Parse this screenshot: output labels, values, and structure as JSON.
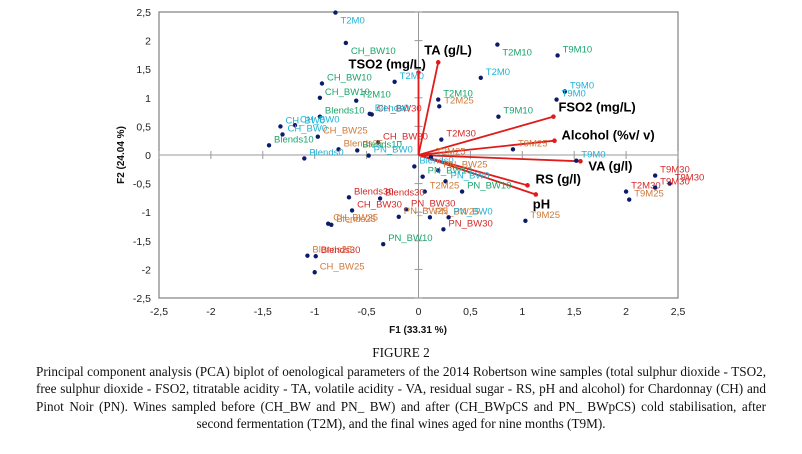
{
  "chart_data": {
    "type": "scatter",
    "subtype": "pca-biplot",
    "title": "",
    "xlabel": "F1 (33.31 %)",
    "ylabel": "F2 (24.04 %)",
    "xlim": [
      -2.5,
      2.5
    ],
    "ylim": [
      -2.5,
      2.5
    ],
    "xticks": [
      -2.5,
      -2,
      -1.5,
      -1,
      -0.5,
      0,
      0.5,
      1,
      1.5,
      2,
      2.5
    ],
    "yticks": [
      -2.5,
      -2,
      -1.5,
      -1,
      -0.5,
      0,
      0.5,
      1,
      1.5,
      2,
      2.5
    ],
    "xtick_labels": [
      "-2,5",
      "-2",
      "-1,5",
      "-1",
      "-0,5",
      "0",
      "0,5",
      "1",
      "1,5",
      "2",
      "2,5"
    ],
    "ytick_labels": [
      "-2,5",
      "-2",
      "-1,5",
      "-1",
      "-0,5",
      "0",
      "0,5",
      "1",
      "1,5",
      "2",
      "2,5"
    ],
    "grid": false,
    "legend": "none",
    "colors": {
      "cyan": "#1fb3d6",
      "green": "#1aa56b",
      "orange": "#d07a3a",
      "red": "#d42a2a",
      "point": "#0b1b6b",
      "vector": "#e01b1b"
    },
    "points": [
      {
        "label": "T2M0",
        "x": -0.8,
        "y": 2.49,
        "color": "cyan"
      },
      {
        "label": "CH_BW10",
        "x": -0.7,
        "y": 1.96,
        "color": "green"
      },
      {
        "label": "CH_BW10",
        "x": -0.93,
        "y": 1.25,
        "color": "green"
      },
      {
        "label": "CH_BW10",
        "x": -0.95,
        "y": 1.0,
        "color": "green"
      },
      {
        "label": "T2M10",
        "x": -0.6,
        "y": 0.95,
        "color": "green"
      },
      {
        "label": "Blends10",
        "x": -0.95,
        "y": 0.67,
        "color": "green"
      },
      {
        "label": "CH_BW30",
        "x": -0.45,
        "y": 0.71,
        "color": "red"
      },
      {
        "label": "Blends0",
        "x": -0.47,
        "y": 0.72,
        "color": "cyan"
      },
      {
        "label": "CH_BW0",
        "x": -1.19,
        "y": 0.52,
        "color": "cyan"
      },
      {
        "label": "CH_BW0",
        "x": -1.33,
        "y": 0.5,
        "color": "cyan"
      },
      {
        "label": "CH_BW0",
        "x": -1.31,
        "y": 0.36,
        "color": "cyan"
      },
      {
        "label": "CH_BW25",
        "x": -0.97,
        "y": 0.32,
        "color": "orange"
      },
      {
        "label": "Blends10",
        "x": -1.44,
        "y": 0.17,
        "color": "green"
      },
      {
        "label": "CH_BW30",
        "x": -0.39,
        "y": 0.22,
        "color": "red"
      },
      {
        "label": "Blends25",
        "x": -0.77,
        "y": 0.1,
        "color": "orange"
      },
      {
        "label": "Blends10",
        "x": -0.59,
        "y": 0.08,
        "color": "green"
      },
      {
        "label": "PN_BW0",
        "x": -0.48,
        "y": -0.01,
        "color": "cyan"
      },
      {
        "label": "Blends0",
        "x": -1.1,
        "y": -0.06,
        "color": "cyan"
      },
      {
        "label": "T2M0",
        "x": -0.23,
        "y": 1.28,
        "color": "cyan"
      },
      {
        "label": "T2M0",
        "x": 0.6,
        "y": 1.35,
        "color": "cyan"
      },
      {
        "label": "T2M10",
        "x": 0.76,
        "y": 1.93,
        "color": "green"
      },
      {
        "label": "T2M10",
        "x": 0.19,
        "y": 0.97,
        "color": "green"
      },
      {
        "label": "T2M25",
        "x": 0.2,
        "y": 0.85,
        "color": "orange"
      },
      {
        "label": "T9M10",
        "x": 1.34,
        "y": 1.74,
        "color": "green"
      },
      {
        "label": "T9M0",
        "x": 1.41,
        "y": 1.11,
        "color": "cyan"
      },
      {
        "label": "T9M0",
        "x": 1.33,
        "y": 0.97,
        "color": "cyan"
      },
      {
        "label": "T9M10",
        "x": 0.77,
        "y": 0.67,
        "color": "green"
      },
      {
        "label": "T2M30",
        "x": 0.22,
        "y": 0.27,
        "color": "red"
      },
      {
        "label": "T9M25",
        "x": 0.91,
        "y": 0.1,
        "color": "orange"
      },
      {
        "label": "T9M0",
        "x": 1.52,
        "y": -0.1,
        "color": "cyan"
      },
      {
        "label": "T2M25",
        "x": 0.12,
        "y": -0.04,
        "color": "orange"
      },
      {
        "label": "Blends0",
        "x": -0.04,
        "y": -0.2,
        "color": "cyan"
      },
      {
        "label": "PN_BW25",
        "x": 0.19,
        "y": -0.27,
        "color": "orange"
      },
      {
        "label": "PN_BW10",
        "x": 0.04,
        "y": -0.38,
        "color": "green"
      },
      {
        "label": "PN_BW0",
        "x": 0.26,
        "y": -0.46,
        "color": "cyan"
      },
      {
        "label": "PN_BW10",
        "x": 0.42,
        "y": -0.64,
        "color": "green"
      },
      {
        "label": "T2M25",
        "x": 0.06,
        "y": -0.64,
        "color": "orange"
      },
      {
        "label": "T2M30",
        "x": 2.0,
        "y": -0.64,
        "color": "red"
      },
      {
        "label": "T9M25",
        "x": 2.03,
        "y": -0.78,
        "color": "orange"
      },
      {
        "label": "T9M30",
        "x": 2.28,
        "y": -0.36,
        "color": "red"
      },
      {
        "label": "T9M30",
        "x": 2.42,
        "y": -0.5,
        "color": "red"
      },
      {
        "label": "T9M30",
        "x": 2.28,
        "y": -0.57,
        "color": "red"
      },
      {
        "label": "Blends30",
        "x": -0.67,
        "y": -0.74,
        "color": "red"
      },
      {
        "label": "Blends30",
        "x": -0.37,
        "y": -0.76,
        "color": "red"
      },
      {
        "label": "PN_BW30",
        "x": -0.12,
        "y": -0.95,
        "color": "red"
      },
      {
        "label": "CH_BW30",
        "x": -0.64,
        "y": -0.97,
        "color": "red"
      },
      {
        "label": "CH_BW25",
        "x": -0.87,
        "y": -1.2,
        "color": "orange"
      },
      {
        "label": "Blends25",
        "x": -0.84,
        "y": -1.22,
        "color": "orange"
      },
      {
        "label": "PN_BW25",
        "x": -0.19,
        "y": -1.08,
        "color": "orange"
      },
      {
        "label": "PN_BW25",
        "x": 0.11,
        "y": -1.09,
        "color": "orange"
      },
      {
        "label": "PN_BW0",
        "x": 0.29,
        "y": -1.09,
        "color": "cyan"
      },
      {
        "label": "PN_BW30",
        "x": 0.24,
        "y": -1.3,
        "color": "red"
      },
      {
        "label": "T9M25",
        "x": 1.03,
        "y": -1.15,
        "color": "orange"
      },
      {
        "label": "PN_BW10",
        "x": -0.34,
        "y": -1.56,
        "color": "green"
      },
      {
        "label": "Blends25",
        "x": -1.07,
        "y": -1.76,
        "color": "orange"
      },
      {
        "label": "Blends30",
        "x": -0.99,
        "y": -1.77,
        "color": "red"
      },
      {
        "label": "CH_BW25",
        "x": -1.0,
        "y": -2.05,
        "color": "orange"
      }
    ],
    "vectors": [
      {
        "label": "TSO2 (mg/L)",
        "x": 0.0,
        "y": 1.44
      },
      {
        "label": "TA (g/L)",
        "x": 0.19,
        "y": 1.62
      },
      {
        "label": "FSO2 (mg/L)",
        "x": 1.3,
        "y": 0.67
      },
      {
        "label": "Alcohol (%v/ v)",
        "x": 1.31,
        "y": 0.25
      },
      {
        "label": "VA (g/l)",
        "x": 1.56,
        "y": -0.11
      },
      {
        "label": "RS (g/l)",
        "x": 1.05,
        "y": -0.53
      },
      {
        "label": "pH",
        "x": 1.13,
        "y": -0.69
      }
    ]
  },
  "caption": {
    "figure_number": "FIGURE 2",
    "text": "Principal component analysis (PCA) biplot of oenological parameters of the 2014 Robertson wine samples (total sulphur dioxide - TSO2, free sulphur dioxide - FSO2, titratable acidity - TA, volatile acidity - VA, residual sugar - RS, pH and alcohol) for Chardonnay (CH) and Pinot Noir (PN). Wines sampled before (CH_BW and PN_ BW) and after (CH_BWpCS and PN_ BWpCS) cold stabilisation, after second fermentation (T2M), and the final wines aged for nine months (T9M)."
  }
}
